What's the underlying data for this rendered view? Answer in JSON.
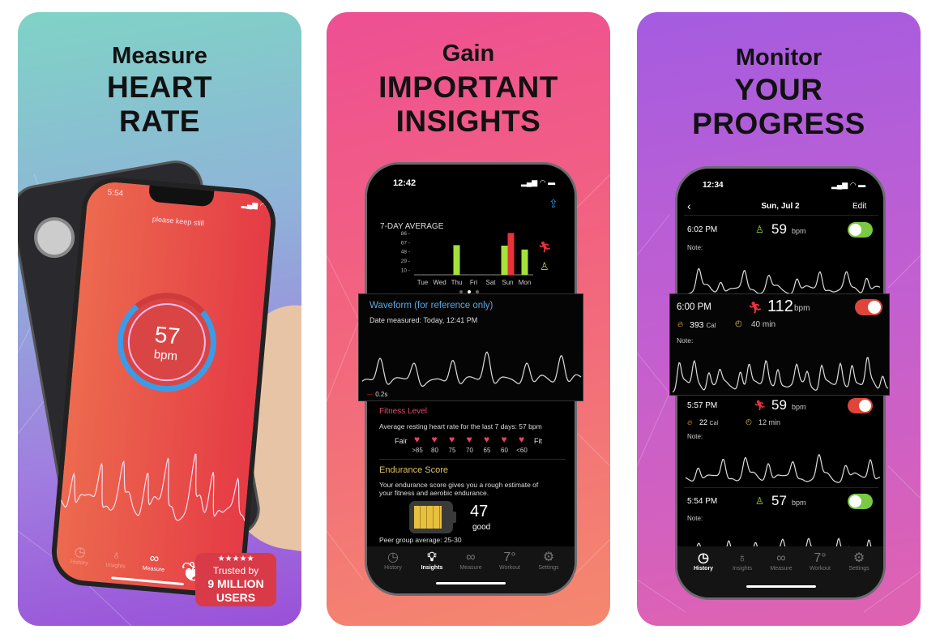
{
  "colors": {
    "green": "#a6e03a",
    "red": "#e8323c",
    "blue": "#5aa8e0",
    "gold": "#e2c060",
    "fitness": "#e0506c"
  },
  "panel1": {
    "headline": [
      "Measure",
      "HEART",
      "RATE"
    ],
    "phone": {
      "time": "5:54",
      "instruction": "please keep still",
      "bpm_value": "57",
      "bpm_unit": "bpm",
      "tabs": [
        "History",
        "Insights",
        "Measure"
      ],
      "active_tab": "Measure"
    },
    "badge": {
      "stars": "★★★★★",
      "line1": "Trusted by",
      "line2": "9 MILLION",
      "line3": "USERS"
    }
  },
  "panel2": {
    "headline": [
      "Gain",
      "IMPORTANT",
      "INSIGHTS"
    ],
    "phone": {
      "time": "12:42",
      "chart_title": "7-DAY AVERAGE",
      "waveform": {
        "title": "Waveform (for reference only)",
        "date": "Date measured: Today, 12:41 PM",
        "scale": "0.2s"
      },
      "fitness": {
        "title": "Fitness Level",
        "desc": "Average resting heart rate for the last 7 days: 57 bpm",
        "left": "Fair",
        "right": "Fit",
        "levels": [
          ">85",
          "80",
          "75",
          "70",
          "65",
          "60",
          "<60"
        ]
      },
      "endurance": {
        "title": "Endurance Score",
        "desc1": "Your endurance score gives you a rough estimate of",
        "desc2": "your fitness and aerobic endurance.",
        "score": "47",
        "rating": "good",
        "battery_level": 0.8,
        "peer": "Peer group average: 25-30"
      },
      "tabs": [
        "History",
        "Insights",
        "Measure",
        "Workout",
        "Settings"
      ],
      "active_tab": "Insights"
    }
  },
  "panel3": {
    "headline": [
      "Monitor",
      "YOUR",
      "PROGRESS"
    ],
    "phone": {
      "time": "12:34",
      "nav_title": "Sun, Jul 2",
      "edit": "Edit",
      "note_label": "Note:",
      "unit": "bpm",
      "entries": [
        {
          "time": "6:02 PM",
          "type": "resting",
          "bpm": "59",
          "enabled": true
        },
        {
          "time": "6:00 PM",
          "type": "workout",
          "bpm": "112",
          "cal": "393",
          "cal_unit": "Cal",
          "duration": "40 min",
          "enabled": true
        },
        {
          "time": "5:57 PM",
          "type": "workout",
          "bpm": "59",
          "cal": "22",
          "cal_unit": "Cal",
          "duration": "12 min",
          "enabled": true
        },
        {
          "time": "5:54 PM",
          "type": "resting",
          "bpm": "57",
          "enabled": true
        }
      ],
      "tabs": [
        "History",
        "Insights",
        "Measure",
        "Workout",
        "Settings"
      ],
      "active_tab": "History"
    }
  },
  "chart_data": {
    "type": "bar",
    "title": "7-DAY AVERAGE",
    "categories": [
      "Tue",
      "Wed",
      "Thu",
      "Fri",
      "Sat",
      "Sun",
      "Mon"
    ],
    "yticks": [
      10,
      29,
      48,
      67,
      86
    ],
    "ylim": [
      0,
      90
    ],
    "grid": false,
    "series": [
      {
        "icon": "resting-person",
        "color": "#a6e03a",
        "values": [
          null,
          null,
          61,
          null,
          null,
          60,
          52
        ]
      },
      {
        "icon": "running-person",
        "color": "#e8323c",
        "values": [
          null,
          null,
          null,
          null,
          null,
          86,
          null
        ]
      }
    ]
  }
}
